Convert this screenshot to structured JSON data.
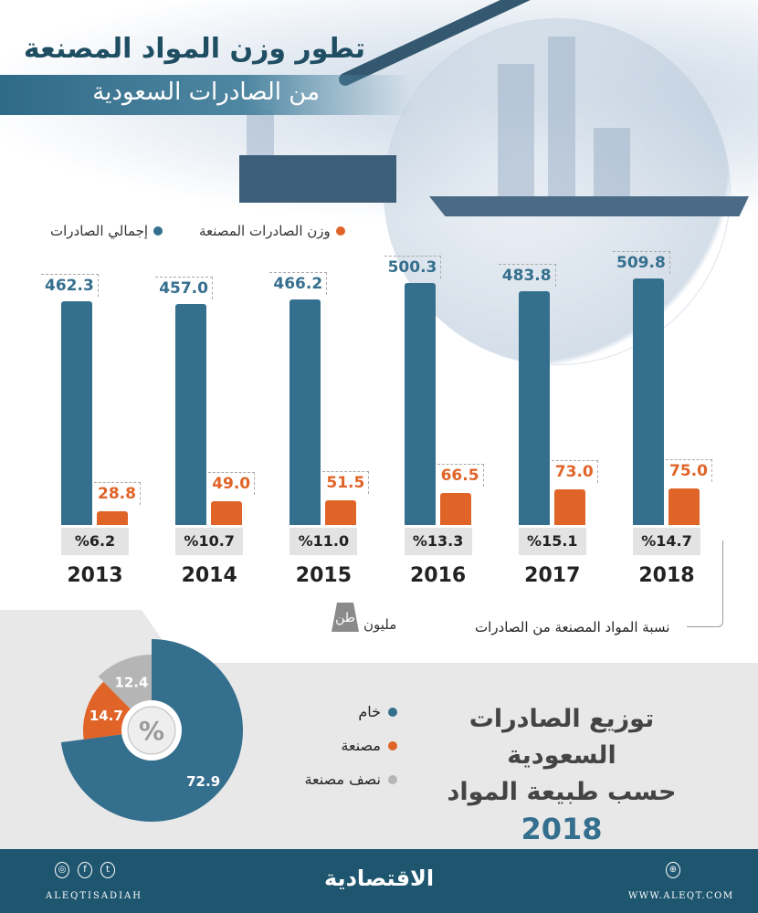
{
  "header": {
    "title": "تطور وزن المواد المصنعة",
    "subtitle": "من الصادرات السعودية"
  },
  "legend": {
    "total": "إجمالي الصادرات",
    "manufactured": "وزن الصادرات المصنعة"
  },
  "unit": {
    "label": "مليون",
    "badge": "طن"
  },
  "ratio_note": "نسبة المواد المصنعة من الصادرات",
  "colors": {
    "total": "#356f8e",
    "manufactured": "#e06428",
    "semi": "#b5b5b5"
  },
  "chart_data": [
    {
      "type": "bar",
      "categories": [
        "2013",
        "2014",
        "2015",
        "2016",
        "2017",
        "2018"
      ],
      "series": [
        {
          "name": "إجمالي الصادرات",
          "values": [
            462.3,
            457.0,
            466.2,
            500.3,
            483.8,
            509.8
          ],
          "labels": [
            "462.3",
            "457.0",
            "466.2",
            "500.3",
            "483.8",
            "509.8"
          ]
        },
        {
          "name": "وزن الصادرات المصنعة",
          "values": [
            28.8,
            49.0,
            51.5,
            66.5,
            73.0,
            75.0
          ],
          "labels": [
            "28.8",
            "49.0",
            "51.5",
            "66.5",
            "73.0",
            "75.0"
          ]
        }
      ],
      "share_labels": [
        "%6.2",
        "%10.7",
        "%11.0",
        "%13.3",
        "%15.1",
        "%14.7"
      ]
    },
    {
      "type": "pie",
      "title": [
        "توزيع الصادرات السعودية",
        "حسب طبيعة المواد",
        "2018"
      ],
      "center_label": "%",
      "slices": [
        {
          "name": "خام",
          "value": 72.9,
          "label": "72.9"
        },
        {
          "name": "مصنعة",
          "value": 14.7,
          "label": "14.7"
        },
        {
          "name": "نصف مصنعة",
          "value": 12.4,
          "label": "12.4"
        }
      ]
    }
  ],
  "footer": {
    "handle": "ALEQTISADIAH",
    "logo": "الاقتصادية",
    "website": "WWW.ALEQT.COM"
  }
}
